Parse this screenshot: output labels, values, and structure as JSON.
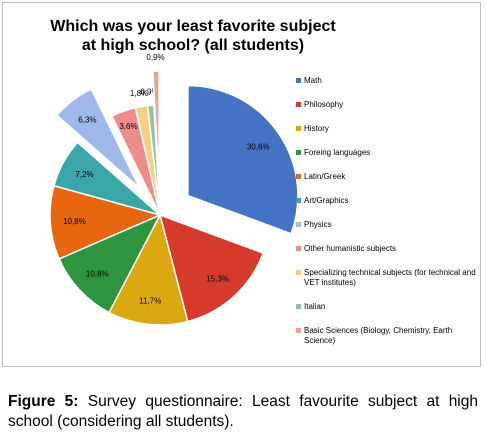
{
  "chart_data": {
    "type": "pie",
    "title": "Which was your least favorite subject at high school? (all students)",
    "categories": [
      "Math",
      "Philosophy",
      "History",
      "Foreing languages",
      "Latin/Greek",
      "Art/Graphics",
      "Physics",
      "Other humanistic subjects",
      "Specializing technical subjects (for technical and VET institutes)",
      "Italian",
      "Basic Sciences (Biology, Chemistry, Earth Science)"
    ],
    "values": [
      30.6,
      15.3,
      11.7,
      10.8,
      10.8,
      7.2,
      6.3,
      3.6,
      1.8,
      0.9,
      0.9
    ],
    "data_labels": [
      "30,6%",
      "15,3%",
      "11,7%",
      "10,8%",
      "10,8%",
      "7,2%",
      "6,3%",
      "3,6%",
      "1,8%",
      "0,9%",
      "0,9%"
    ],
    "exploded": [
      true,
      false,
      false,
      false,
      false,
      false,
      true,
      false,
      false,
      false,
      true
    ],
    "colors": [
      "#4472c4",
      "#d73a2a",
      "#dba80f",
      "#2e9440",
      "#e8660f",
      "#3aa6a8",
      "#9fb8ea",
      "#ee8c8c",
      "#f6cf82",
      "#8ec3a8",
      "#f2a089"
    ],
    "legend_position": "right"
  },
  "caption": {
    "label": "Figure 5:",
    "text": " Survey questionnaire: Least favourite subject at high school (considering all students)."
  }
}
